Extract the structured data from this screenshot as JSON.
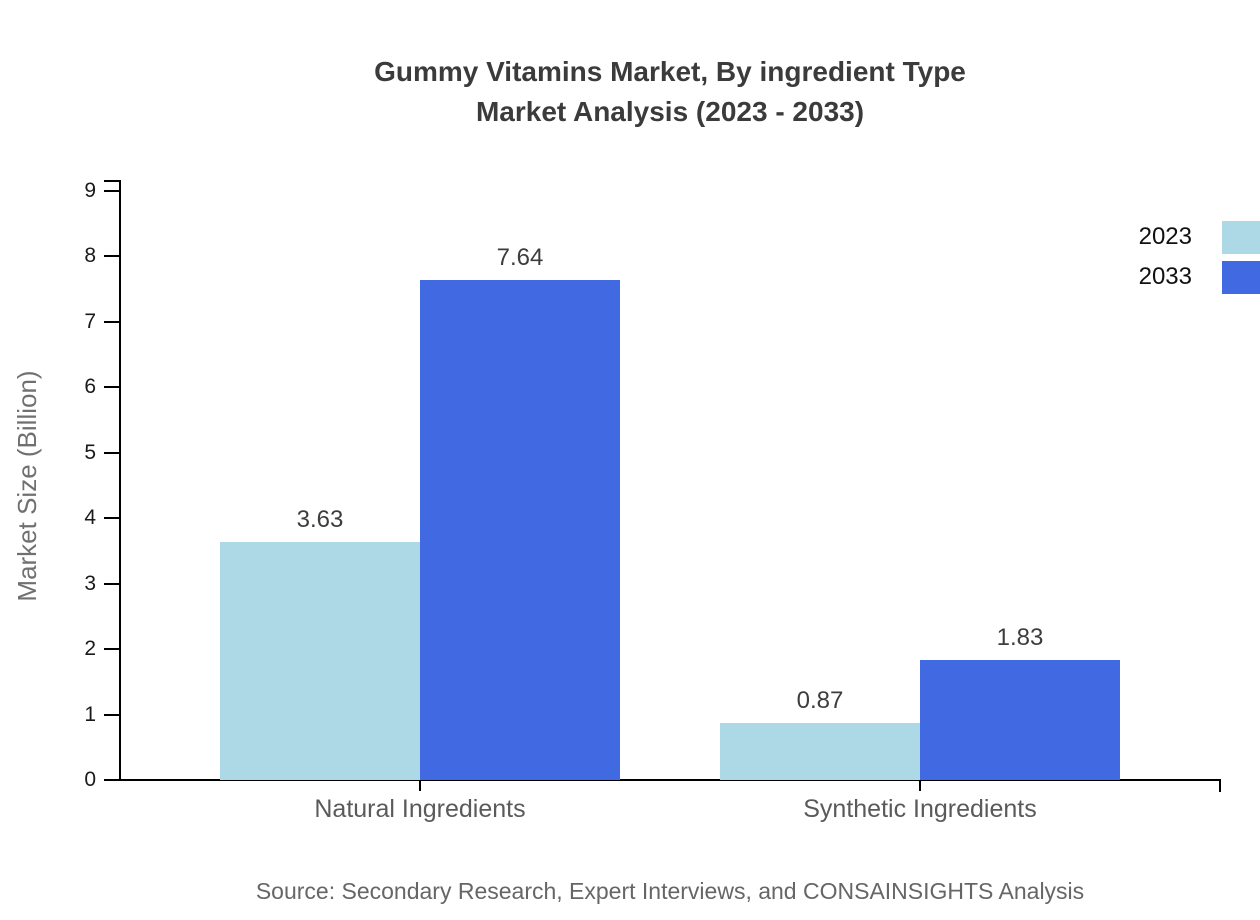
{
  "chart_data": {
    "type": "bar",
    "title_line1": "Gummy Vitamins Market, By ingredient Type",
    "title_line2": "Market Analysis (2023 - 2033)",
    "categories": [
      "Natural Ingredients",
      "Synthetic Ingredients"
    ],
    "series": [
      {
        "name": "2023",
        "color": "#ADD8E6",
        "values": [
          3.63,
          0.87
        ]
      },
      {
        "name": "2033",
        "color": "#4169E1",
        "values": [
          7.64,
          1.83
        ]
      }
    ],
    "data_label_format": "2-decimals",
    "xlabel": "",
    "ylabel": "Market Size (Billion)",
    "ylim": [
      0,
      9.15
    ],
    "yticks": [
      0,
      1,
      2,
      3,
      4,
      5,
      6,
      7,
      8,
      9
    ],
    "grid": false,
    "legend_position": "top-right",
    "axis_color": "#000000",
    "title_color": "#3b3b3b",
    "label_color": "#5a5a5a"
  },
  "footer": {
    "source": "Source: Secondary Research, Expert Interviews, and CONSAINSIGHTS Analysis"
  }
}
